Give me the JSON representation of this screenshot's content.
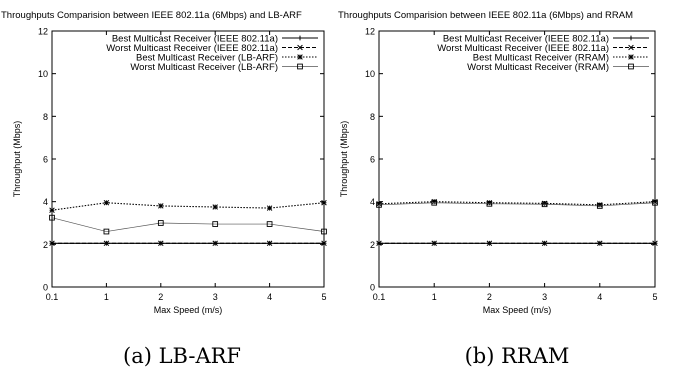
{
  "figure": {
    "captions": [
      "(a) LB-ARF",
      "(b) RRAM"
    ]
  },
  "chart_data": [
    {
      "type": "line",
      "title": "Throughputs Comparision between IEEE 802.11a (6Mbps) and LB-ARF",
      "xlabel": "Max Speed (m/s)",
      "ylabel": "Throughput (Mbps)",
      "x": [
        0.1,
        1,
        2,
        3,
        4,
        5
      ],
      "x_tick_labels": [
        "0.1",
        "1",
        "2",
        "3",
        "4",
        "5"
      ],
      "y_ticks": [
        0,
        2,
        4,
        6,
        8,
        10,
        12
      ],
      "xlim": [
        0.1,
        5
      ],
      "ylim": [
        0,
        12
      ],
      "grid": false,
      "legend_position": "top-right",
      "series": [
        {
          "name": "Best Multicast Receiver (IEEE 802.11a)",
          "marker": "plus",
          "line": "solid",
          "values": [
            2.05,
            2.05,
            2.05,
            2.05,
            2.05,
            2.05
          ]
        },
        {
          "name": "Worst Multicast Receiver (IEEE 802.11a)",
          "marker": "x",
          "line": "dashed",
          "values": [
            2.05,
            2.05,
            2.05,
            2.05,
            2.05,
            2.05
          ]
        },
        {
          "name": "Best Multicast Receiver (LB-ARF)",
          "marker": "star",
          "line": "dotted",
          "values": [
            3.6,
            3.95,
            3.8,
            3.75,
            3.7,
            3.95
          ]
        },
        {
          "name": "Worst Multicast Receiver (LB-ARF)",
          "marker": "square",
          "line": "thin",
          "values": [
            3.25,
            2.6,
            3.0,
            2.95,
            2.95,
            2.6
          ]
        }
      ]
    },
    {
      "type": "line",
      "title": "Throughputs Comparision between IEEE 802.11a (6Mbps) and RRAM",
      "xlabel": "Max Speed (m/s)",
      "ylabel": "Throughput (Mbps)",
      "x": [
        0.1,
        1,
        2,
        3,
        4,
        5
      ],
      "x_tick_labels": [
        "0.1",
        "1",
        "2",
        "3",
        "4",
        "5"
      ],
      "y_ticks": [
        0,
        2,
        4,
        6,
        8,
        10,
        12
      ],
      "xlim": [
        0.1,
        5
      ],
      "ylim": [
        0,
        12
      ],
      "grid": false,
      "legend_position": "top-right",
      "series": [
        {
          "name": "Best Multicast Receiver (IEEE 802.11a)",
          "marker": "plus",
          "line": "solid",
          "values": [
            2.05,
            2.05,
            2.05,
            2.05,
            2.05,
            2.05
          ]
        },
        {
          "name": "Worst Multicast Receiver (IEEE 802.11a)",
          "marker": "x",
          "line": "dashed",
          "values": [
            2.05,
            2.05,
            2.05,
            2.05,
            2.05,
            2.05
          ]
        },
        {
          "name": "Best Multicast Receiver (RRAM)",
          "marker": "star",
          "line": "dotted",
          "values": [
            3.9,
            4.0,
            3.95,
            3.92,
            3.85,
            4.0
          ]
        },
        {
          "name": "Worst Multicast Receiver (RRAM)",
          "marker": "square",
          "line": "thin",
          "values": [
            3.85,
            3.95,
            3.9,
            3.88,
            3.8,
            3.95
          ]
        }
      ]
    }
  ]
}
